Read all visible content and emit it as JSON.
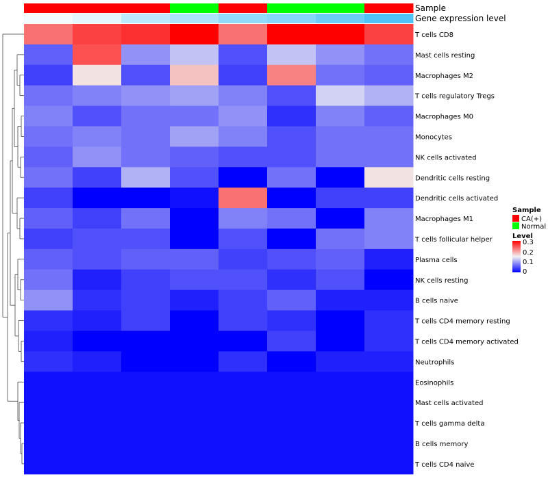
{
  "chart_data": {
    "type": "heatmap",
    "annotation_labels": [
      "Sample",
      "Gene expression level"
    ],
    "columns": [
      {
        "sample": "CA(+)",
        "expression": 0.02
      },
      {
        "sample": "CA(+)",
        "expression": 0.05
      },
      {
        "sample": "CA(+)",
        "expression": 0.12
      },
      {
        "sample": "Normal",
        "expression": 0.15
      },
      {
        "sample": "CA(+)",
        "expression": 0.2
      },
      {
        "sample": "Normal",
        "expression": 0.22
      },
      {
        "sample": "Normal",
        "expression": 0.27
      },
      {
        "sample": "CA(+)",
        "expression": 0.32
      }
    ],
    "rows": [
      "T cells CD8",
      "Mast cells resting",
      "Macrophages M2",
      "T cells regulatory  Tregs",
      "Macrophages M0",
      "Monocytes",
      "NK cells activated",
      "Dendritic cells resting",
      "Dendritic cells activated",
      "Macrophages M1",
      "T cells follicular helper",
      "Plasma cells",
      "NK cells resting",
      "B cells naive",
      "T cells CD4 memory resting",
      "T cells CD4 memory activated",
      "Neutrophils",
      "Eosinophils",
      "Mast cells activated",
      "T cells gamma delta",
      "B cells memory",
      "T cells CD4 naive"
    ],
    "values": [
      [
        0.23,
        0.26,
        0.27,
        0.32,
        0.23,
        0.31,
        0.31,
        0.26
      ],
      [
        0.06,
        0.25,
        0.09,
        0.12,
        0.05,
        0.12,
        0.09,
        0.07
      ],
      [
        0.04,
        0.16,
        0.05,
        0.18,
        0.04,
        0.22,
        0.07,
        0.06
      ],
      [
        0.07,
        0.08,
        0.09,
        0.1,
        0.08,
        0.05,
        0.13,
        0.11
      ],
      [
        0.08,
        0.05,
        0.07,
        0.07,
        0.09,
        0.03,
        0.08,
        0.06
      ],
      [
        0.07,
        0.08,
        0.07,
        0.1,
        0.08,
        0.05,
        0.07,
        0.07
      ],
      [
        0.06,
        0.09,
        0.07,
        0.06,
        0.05,
        0.05,
        0.07,
        0.07
      ],
      [
        0.07,
        0.04,
        0.11,
        0.05,
        0.0,
        0.07,
        0.0,
        0.16
      ],
      [
        0.04,
        0.0,
        0.0,
        0.01,
        0.23,
        0.0,
        0.04,
        0.04
      ],
      [
        0.06,
        0.04,
        0.07,
        0.0,
        0.08,
        0.07,
        0.0,
        0.08
      ],
      [
        0.04,
        0.05,
        0.05,
        0.0,
        0.05,
        0.0,
        0.07,
        0.08
      ],
      [
        0.06,
        0.05,
        0.06,
        0.06,
        0.04,
        0.05,
        0.06,
        0.02
      ],
      [
        0.07,
        0.02,
        0.04,
        0.05,
        0.05,
        0.03,
        0.05,
        0.0
      ],
      [
        0.09,
        0.03,
        0.04,
        0.02,
        0.04,
        0.06,
        0.02,
        0.02
      ],
      [
        0.03,
        0.02,
        0.04,
        0.0,
        0.04,
        0.03,
        0.0,
        0.03
      ],
      [
        0.02,
        0.0,
        0.0,
        0.0,
        0.0,
        0.04,
        0.0,
        0.03
      ],
      [
        0.03,
        0.02,
        0.0,
        0.0,
        0.03,
        0.0,
        0.02,
        0.02
      ],
      [
        0.01,
        0.01,
        0.01,
        0.01,
        0.01,
        0.01,
        0.01,
        0.01
      ],
      [
        0.01,
        0.01,
        0.01,
        0.01,
        0.01,
        0.01,
        0.01,
        0.01
      ],
      [
        0.01,
        0.01,
        0.01,
        0.01,
        0.01,
        0.01,
        0.01,
        0.01
      ],
      [
        0.01,
        0.01,
        0.01,
        0.01,
        0.01,
        0.01,
        0.01,
        0.01
      ],
      [
        0.01,
        0.01,
        0.01,
        0.01,
        0.01,
        0.01,
        0.01,
        0.01
      ]
    ],
    "color_scale": {
      "min": 0,
      "mid": 0.15,
      "max": 0.3,
      "low": "#0000FF",
      "mid_color": "#F2F2F2",
      "high": "#FF0000"
    },
    "expression_scale": {
      "min": 0,
      "max": 0.32,
      "low": "#FFFFFF",
      "high": "#4FC3F7"
    },
    "sample_colors": {
      "CA(+)": "#FF0000",
      "Normal": "#00FF00"
    },
    "legend": {
      "sample_title": "Sample",
      "sample_entries": [
        "CA(+)",
        "Normal"
      ],
      "level_title": "Level",
      "level_ticks": [
        "0.3",
        "0.2",
        "0.1",
        "0"
      ]
    }
  }
}
